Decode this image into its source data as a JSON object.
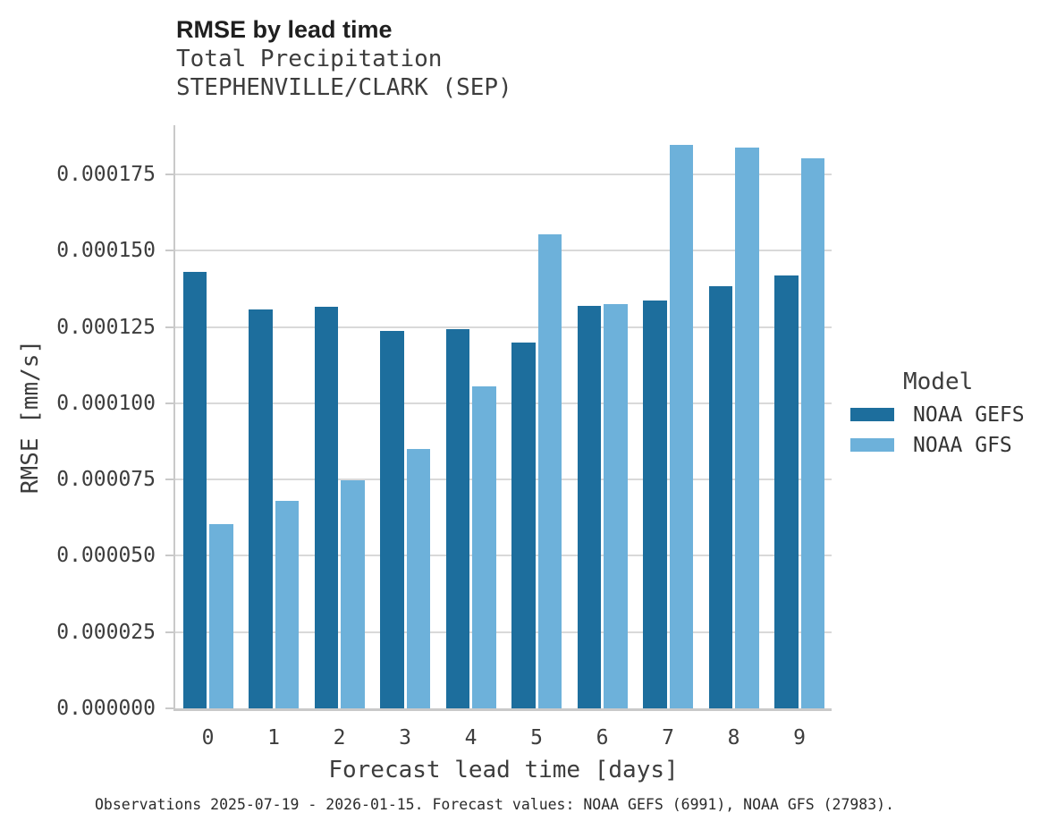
{
  "header": {
    "title": "RMSE by lead time",
    "subtitle_line1": "Total Precipitation",
    "subtitle_line2": "STEPHENVILLE/CLARK (SEP)"
  },
  "legend": {
    "title": "Model",
    "items": [
      {
        "label": "NOAA GEFS",
        "color": "#1d6e9d"
      },
      {
        "label": "NOAA GFS",
        "color": "#6db1da"
      }
    ]
  },
  "footer": {
    "caption": "Observations 2025-07-19 - 2026-01-15. Forecast values: NOAA GEFS (6991), NOAA GFS (27983)."
  },
  "chart_data": {
    "type": "bar",
    "title": "RMSE by lead time",
    "subtitle_lines": [
      "Total Precipitation",
      "STEPHENVILLE/CLARK (SEP)"
    ],
    "xlabel": "Forecast lead time [days]",
    "ylabel": "RMSE [mm/s]",
    "categories": [
      "0",
      "1",
      "2",
      "3",
      "4",
      "5",
      "6",
      "7",
      "8",
      "9"
    ],
    "series": [
      {
        "name": "NOAA GEFS",
        "color": "#1d6e9d",
        "values": [
          0.0001431,
          0.0001306,
          0.0001316,
          0.0001236,
          0.0001242,
          0.0001199,
          0.000132,
          0.0001338,
          0.0001383,
          0.0001419
        ]
      },
      {
        "name": "NOAA GFS",
        "color": "#6db1da",
        "values": [
          6.03e-05,
          6.8e-05,
          7.47e-05,
          8.5e-05,
          0.0001056,
          0.0001554,
          0.0001325,
          0.0001846,
          0.0001837,
          0.0001802
        ]
      }
    ],
    "ylim": [
      0,
      0.000191
    ],
    "yticks": [
      0.0,
      2.5e-05,
      5e-05,
      7.5e-05,
      0.0001,
      0.000125,
      0.00015,
      0.000175
    ],
    "yticklabels": [
      "0.000000",
      "0.000025",
      "0.000050",
      "0.000075",
      "0.000100",
      "0.000125",
      "0.000150",
      "0.000175"
    ],
    "grid": true,
    "legend_title": "Model",
    "legend_position": "right"
  }
}
